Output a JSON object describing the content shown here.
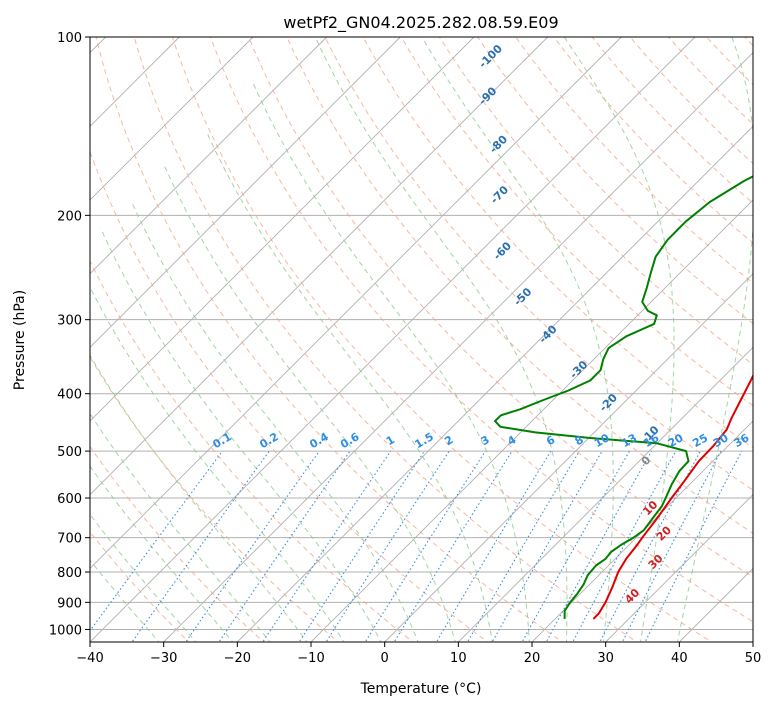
{
  "chart_data": {
    "type": "line",
    "subtype": "skew-t log-p",
    "title": "wetPf2_GN04.2025.282.08.59.E09",
    "xlabel": "Temperature (°C)",
    "ylabel": "Pressure (hPa)",
    "xlim": [
      -40,
      50
    ],
    "ylim": [
      1050,
      100
    ],
    "x_ticks": [
      -40,
      -30,
      -20,
      -10,
      0,
      10,
      20,
      30,
      40,
      50
    ],
    "y_ticks": [
      1000,
      900,
      800,
      700,
      600,
      500,
      400,
      300,
      200,
      100
    ],
    "grid": true,
    "colors": {
      "temperature": "#e00000",
      "dewpoint": "#008000",
      "isotherm": "#b0b0b0",
      "dry_adiabat": "#f4a58a",
      "moist_adiabat": "#8cc98c",
      "mixing_ratio": "#3b8fd9",
      "label_isotherm": "#2a6fb0",
      "label_mixing": "#2f8de4",
      "label_theta": "#d02020",
      "label_gray": "#888888"
    },
    "series": [
      {
        "name": "Temperature",
        "points": [
          {
            "p": 960,
            "t": 25.2
          },
          {
            "p": 940,
            "t": 25.2
          },
          {
            "p": 900,
            "t": 24.6
          },
          {
            "p": 850,
            "t": 23.5
          },
          {
            "p": 800,
            "t": 22.2
          },
          {
            "p": 760,
            "t": 21.5
          },
          {
            "p": 720,
            "t": 21.1
          },
          {
            "p": 700,
            "t": 20.8
          },
          {
            "p": 650,
            "t": 20.2
          },
          {
            "p": 600,
            "t": 19.4
          },
          {
            "p": 560,
            "t": 18.8
          },
          {
            "p": 520,
            "t": 18.1
          },
          {
            "p": 490,
            "t": 18.0
          },
          {
            "p": 460,
            "t": 17.6
          },
          {
            "p": 440,
            "t": 16.7
          },
          {
            "p": 410,
            "t": 15.5
          },
          {
            "p": 380,
            "t": 14.2
          },
          {
            "p": 350,
            "t": 12.7
          },
          {
            "p": 320,
            "t": 10.9
          },
          {
            "p": 300,
            "t": 9.6
          },
          {
            "p": 280,
            "t": 8.2
          },
          {
            "p": 260,
            "t": 6.6
          },
          {
            "p": 240,
            "t": 4.7
          },
          {
            "p": 225,
            "t": 3.5
          },
          {
            "p": 210,
            "t": 2.8
          },
          {
            "p": 200,
            "t": 2.8
          },
          {
            "p": 185,
            "t": 2.5
          },
          {
            "p": 170,
            "t": 2.0
          },
          {
            "p": 155,
            "t": 1.2
          },
          {
            "p": 145,
            "t": 0.2
          },
          {
            "p": 138,
            "t": -0.1
          },
          {
            "p": 130,
            "t": 1.0
          },
          {
            "p": 122,
            "t": 3.0
          },
          {
            "p": 116,
            "t": 6.0
          },
          {
            "p": 112,
            "t": 9.0
          },
          {
            "p": 110,
            "t": 11.0
          },
          {
            "p": 107,
            "t": 12.2
          },
          {
            "p": 103,
            "t": 12.8
          },
          {
            "p": 100,
            "t": 13.0
          }
        ]
      },
      {
        "name": "Dewpoint",
        "points": [
          {
            "p": 960,
            "t": 21.3
          },
          {
            "p": 930,
            "t": 20.2
          },
          {
            "p": 900,
            "t": 19.8
          },
          {
            "p": 870,
            "t": 19.6
          },
          {
            "p": 840,
            "t": 19.2
          },
          {
            "p": 810,
            "t": 18.5
          },
          {
            "p": 780,
            "t": 18.3
          },
          {
            "p": 760,
            "t": 18.7
          },
          {
            "p": 740,
            "t": 18.5
          },
          {
            "p": 720,
            "t": 18.9
          },
          {
            "p": 700,
            "t": 19.6
          },
          {
            "p": 680,
            "t": 20.0
          },
          {
            "p": 650,
            "t": 19.6
          },
          {
            "p": 620,
            "t": 19.2
          },
          {
            "p": 600,
            "t": 18.6
          },
          {
            "p": 570,
            "t": 17.6
          },
          {
            "p": 540,
            "t": 16.8
          },
          {
            "p": 520,
            "t": 16.7
          },
          {
            "p": 500,
            "t": 15.0
          },
          {
            "p": 485,
            "t": 10.0
          },
          {
            "p": 475,
            "t": 0.0
          },
          {
            "p": 465,
            "t": -8.0
          },
          {
            "p": 455,
            "t": -13.5
          },
          {
            "p": 445,
            "t": -15.0
          },
          {
            "p": 435,
            "t": -15.0
          },
          {
            "p": 425,
            "t": -13.2
          },
          {
            "p": 410,
            "t": -11.3
          },
          {
            "p": 395,
            "t": -9.2
          },
          {
            "p": 380,
            "t": -7.6
          },
          {
            "p": 365,
            "t": -7.6
          },
          {
            "p": 350,
            "t": -8.7
          },
          {
            "p": 335,
            "t": -9.5
          },
          {
            "p": 320,
            "t": -8.7
          },
          {
            "p": 305,
            "t": -6.6
          },
          {
            "p": 295,
            "t": -7.4
          },
          {
            "p": 290,
            "t": -9.2
          },
          {
            "p": 280,
            "t": -11.2
          },
          {
            "p": 265,
            "t": -12.5
          },
          {
            "p": 250,
            "t": -14.0
          },
          {
            "p": 235,
            "t": -15.5
          },
          {
            "p": 220,
            "t": -16.2
          },
          {
            "p": 205,
            "t": -16.2
          },
          {
            "p": 190,
            "t": -15.6
          },
          {
            "p": 175,
            "t": -13.8
          },
          {
            "p": 160,
            "t": -10.8
          },
          {
            "p": 150,
            "t": -9.8
          },
          {
            "p": 140,
            "t": -11.0
          },
          {
            "p": 130,
            "t": -12.2
          },
          {
            "p": 122,
            "t": -12.8
          },
          {
            "p": 116,
            "t": -14.0
          },
          {
            "p": 112,
            "t": -13.8
          },
          {
            "p": 108,
            "t": -12.3
          },
          {
            "p": 104,
            "t": -11.2
          },
          {
            "p": 100,
            "t": -11.0
          }
        ]
      }
    ],
    "isotherm_labels": [
      {
        "text": "-100",
        "p": 108,
        "t": -65
      },
      {
        "text": "-90",
        "p": 126,
        "t": -60
      },
      {
        "text": "-80",
        "p": 152,
        "t": -52
      },
      {
        "text": "-70",
        "p": 185,
        "t": -45
      },
      {
        "text": "-60",
        "p": 230,
        "t": -37
      },
      {
        "text": "-50",
        "p": 275,
        "t": -28
      },
      {
        "text": "-40",
        "p": 318,
        "t": -19.5
      },
      {
        "text": "-30",
        "p": 365,
        "t": -10.5
      },
      {
        "text": "-20",
        "p": 415,
        "t": -2
      },
      {
        "text": "-10",
        "p": 470,
        "t": 8
      }
    ],
    "mixing_ratio_labels": [
      {
        "text": "0.1",
        "t": -22.7
      },
      {
        "text": "0.2",
        "t": -16.2
      },
      {
        "text": "0.4",
        "t": -9.2
      },
      {
        "text": "0.6",
        "t": -5.2
      },
      {
        "text": "1",
        "t": 0.2
      },
      {
        "text": "1.5",
        "t": 4.9
      },
      {
        "text": "2",
        "t": 8.2
      },
      {
        "text": "3",
        "t": 13.3
      },
      {
        "text": "4",
        "t": 17.0
      },
      {
        "text": "6",
        "t": 22.0
      },
      {
        "text": "8",
        "t": 25.6
      },
      {
        "text": "10",
        "t": 28.5
      },
      {
        "text": "13",
        "t": 32.0
      },
      {
        "text": "16",
        "t": 35.0
      },
      {
        "text": "20",
        "t": 38.4
      },
      {
        "text": "25",
        "t": 41.8
      },
      {
        "text": "30",
        "t": 44.8
      },
      {
        "text": "36",
        "t": 47.7
      }
    ],
    "theta_labels": [
      {
        "text": "0",
        "p": 520,
        "t": 11.0,
        "color_key": "label_gray"
      },
      {
        "text": "10",
        "p": 625,
        "t": 18.0,
        "color_key": "label_theta"
      },
      {
        "text": "20",
        "p": 690,
        "t": 23.3,
        "color_key": "label_theta"
      },
      {
        "text": "30",
        "p": 770,
        "t": 26.0,
        "color_key": "label_theta"
      },
      {
        "text": "40",
        "p": 880,
        "t": 27.5,
        "color_key": "label_theta"
      }
    ]
  }
}
